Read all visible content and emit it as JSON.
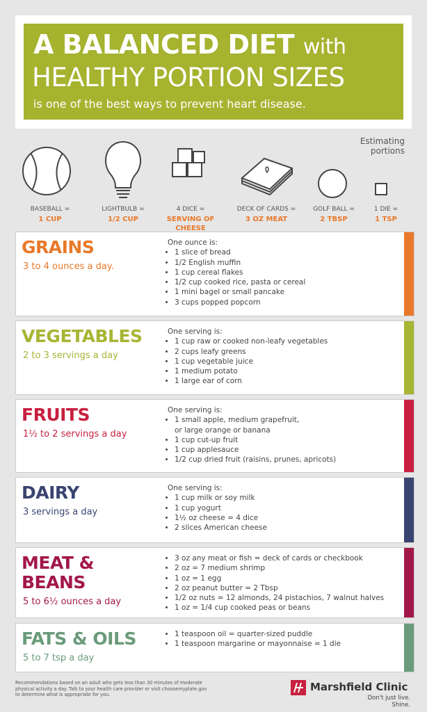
{
  "header": {
    "title_bold": "A BALANCED DIET",
    "title_with": "with",
    "title_line2": "HEALTHY PORTION SIZES",
    "subtitle": "is one of the best ways to prevent heart disease."
  },
  "portions": {
    "heading": "Estimating\nportions",
    "items": [
      {
        "object": "BASEBALL =",
        "measure": "1 CUP"
      },
      {
        "object": "LIGHTBULB =",
        "measure": "1/2 CUP"
      },
      {
        "object": "4 DICE =",
        "measure": "SERVING OF\nCHEESE"
      },
      {
        "object": "DECK OF CARDS =",
        "measure": "3 OZ MEAT"
      },
      {
        "object": "GOLF BALL =",
        "measure": "2 TBSP"
      },
      {
        "object": "1 DIE =",
        "measure": "1 TSP"
      }
    ]
  },
  "groups": [
    {
      "name": "GRAINS",
      "amount": "3 to 4 ounces a day.",
      "color": "#e8792a",
      "intro": "One ounce is:",
      "items": [
        "1 slice of bread",
        "1/2 English muffin",
        "1 cup cereal flakes",
        "1/2 cup cooked rice, pasta or cereal",
        "1 mini bagel or small pancake",
        "3 cups popped popcorn"
      ]
    },
    {
      "name": "VEGETABLES",
      "amount": "2 to 3 servings a day",
      "color": "#a7b534",
      "intro": "One serving is:",
      "items": [
        "1 cup raw or cooked non-leafy vegetables",
        "2 cups leafy greens",
        "1 cup vegetable juice",
        "1 medium potato",
        "1 large ear of corn"
      ]
    },
    {
      "name": "FRUITS",
      "amount": "1½ to 2 servings a day",
      "color": "#c8203f",
      "intro": "One serving is:",
      "items": [
        "1 small apple, medium grapefruit,\nor large orange or banana",
        "1 cup cut-up fruit",
        "1 cup applesauce",
        "1/2 cup dried fruit (raisins, prunes, apricots)"
      ]
    },
    {
      "name": "DAIRY",
      "amount": "3 servings a day",
      "color": "#3a4470",
      "intro": "One serving is:",
      "items": [
        "1 cup milk or soy milk",
        "1 cup yogurt",
        "1½ oz cheese = 4 dice",
        "2 slices American cheese"
      ]
    },
    {
      "name": "MEAT &\nBEANS",
      "amount": "5 to 6½ ounces a day",
      "color": "#a2174a",
      "items": [
        "3 oz any meat or fish = deck of cards or checkbook",
        "2 oz = 7 medium shrimp",
        "1 oz = 1 egg",
        "2 oz peanut butter = 2 Tbsp",
        "1/2 oz nuts = 12 almonds, 24 pistachios, 7 walnut halves",
        "1 oz = 1/4 cup cooked peas or beans"
      ]
    },
    {
      "name": "FATS & OILS",
      "amount": "5 to 7 tsp a day",
      "color": "#6a9b7a",
      "items": [
        "1 teaspoon oil = quarter-sized puddle",
        "1 teaspoon margarine or mayonnaise = 1 die"
      ]
    }
  ],
  "footer": {
    "disclaimer": "Recommendations based on an adult who gets less than 30 minutes of moderate\nphysical activity a day. Talk to your health care provider or visit choosemyplate.gov\nto determine what is appropriate for you.",
    "brand": "Marshfield Clinic",
    "tagline": "Don't just live. Shine."
  }
}
